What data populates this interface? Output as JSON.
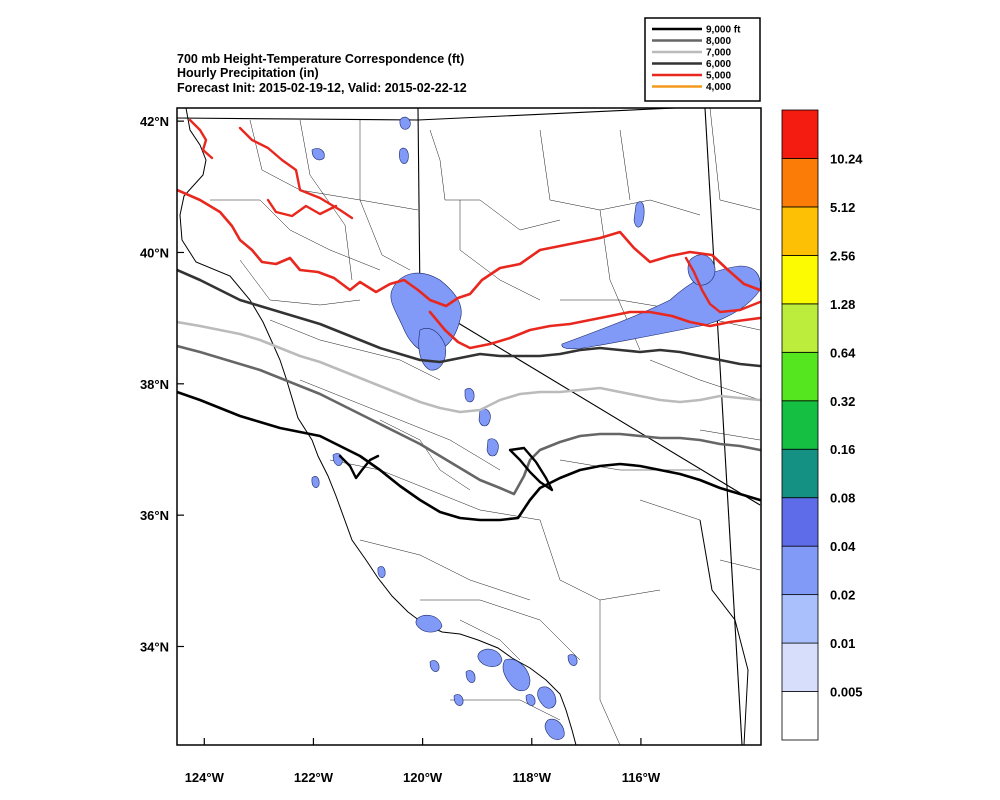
{
  "title": {
    "line1": "700 mb Height-Temperature Correspondence (ft)",
    "line2": "Hourly Precipitation (in)",
    "line3": "Forecast Init: 2015-02-19-12, Valid: 2015-02-22-12"
  },
  "map": {
    "lon_range": [
      -124.5,
      -113.8
    ],
    "lat_range": [
      32.5,
      42.2
    ],
    "lat_ticks": [
      {
        "value": 42,
        "label": "42°N"
      },
      {
        "value": 40,
        "label": "40°N"
      },
      {
        "value": 38,
        "label": "38°N"
      },
      {
        "value": 36,
        "label": "36°N"
      },
      {
        "value": 34,
        "label": "34°N"
      }
    ],
    "lon_ticks": [
      {
        "value": -124,
        "label": "124°W"
      },
      {
        "value": -122,
        "label": "122°W"
      },
      {
        "value": -120,
        "label": "120°W"
      },
      {
        "value": -118,
        "label": "118°W"
      },
      {
        "value": -116,
        "label": "116°W"
      }
    ]
  },
  "contour_legend": [
    {
      "label": "9,000 ft",
      "color": "#000000"
    },
    {
      "label": "8,000",
      "color": "#666666"
    },
    {
      "label": "7,000",
      "color": "#bbbbbb"
    },
    {
      "label": "6,000",
      "color": "#333333"
    },
    {
      "label": "5,000",
      "color": "#e8281e"
    },
    {
      "label": "4,000",
      "color": "#f39a1c"
    }
  ],
  "colorbar": {
    "colors": [
      "#ffffff",
      "#d7defc",
      "#a9c0fc",
      "#8199f7",
      "#5f6cea",
      "#159184",
      "#15bf42",
      "#56e620",
      "#bced3c",
      "#fdfb02",
      "#fdc004",
      "#fb7c06",
      "#f41c10"
    ],
    "labels": [
      "0.005",
      "0.01",
      "0.02",
      "0.04",
      "0.08",
      "0.16",
      "0.32",
      "0.64",
      "1.28",
      "2.56",
      "5.12",
      "10.24"
    ]
  },
  "precip_fill_color": "#8199f7",
  "precip_edge_color": "#1b2a6a"
}
